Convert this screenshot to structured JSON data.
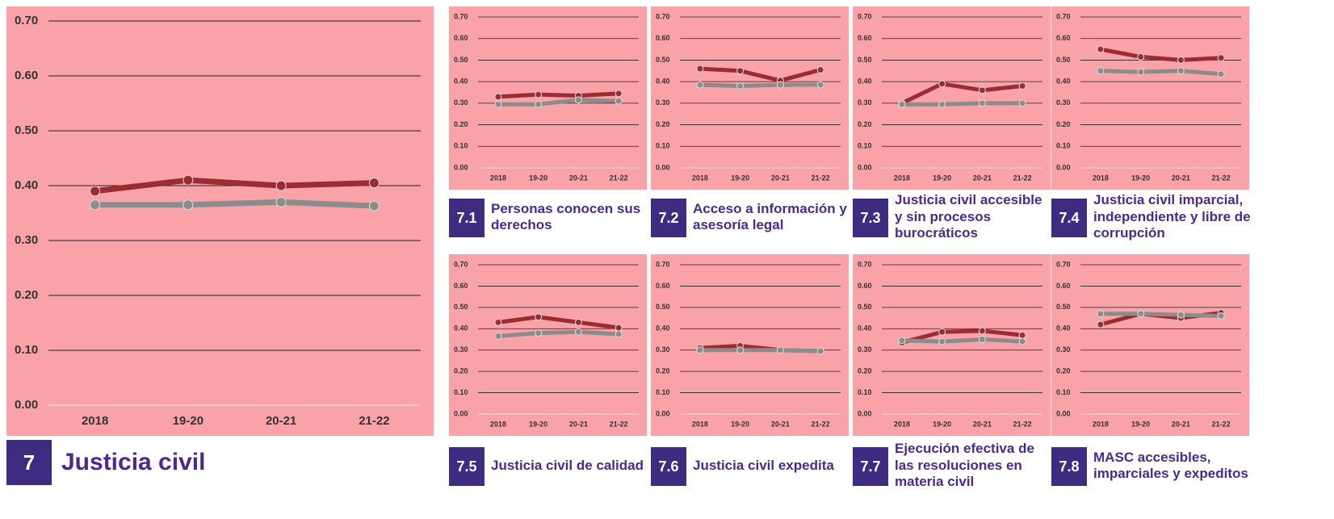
{
  "chart_data": [
    {
      "type": "line",
      "badge": "7",
      "title": "Justicia civil",
      "categories": [
        "2018",
        "19-20",
        "20-21",
        "21-22"
      ],
      "series": [
        {
          "color": "#9b2c31",
          "values": [
            0.39,
            0.41,
            0.4,
            0.405
          ]
        },
        {
          "color": "#8c8c8c",
          "values": [
            0.365,
            0.365,
            0.37,
            0.363
          ]
        }
      ],
      "ylim": [
        0,
        0.7
      ],
      "yticks": [
        {
          "value": 0,
          "label": "0.00"
        },
        {
          "value": 0.1,
          "label": "0.10"
        },
        {
          "value": 0.2,
          "label": "0.20"
        },
        {
          "value": 0.3,
          "label": "0.30"
        },
        {
          "value": 0.4,
          "label": "0.40"
        },
        {
          "value": 0.5,
          "label": "0.50"
        },
        {
          "value": 0.6,
          "label": "0.60"
        },
        {
          "value": 0.7,
          "label": "0.70"
        }
      ],
      "grid": true
    },
    {
      "type": "line",
      "badge": "7.1",
      "title": "Personas conocen sus derechos",
      "categories": [
        "2018",
        "19-20",
        "20-21",
        "21-22"
      ],
      "series": [
        {
          "color": "#9b2c31",
          "values": [
            0.33,
            0.34,
            0.335,
            0.345
          ]
        },
        {
          "color": "#8c8c8c",
          "values": [
            0.295,
            0.295,
            0.315,
            0.31
          ]
        }
      ],
      "ylim": [
        0,
        0.7
      ],
      "yticks": [
        {
          "value": 0,
          "label": "0.00"
        },
        {
          "value": 0.1,
          "label": "0.10"
        },
        {
          "value": 0.2,
          "label": "0.20"
        },
        {
          "value": 0.3,
          "label": "0.30"
        },
        {
          "value": 0.4,
          "label": "0.40"
        },
        {
          "value": 0.5,
          "label": "0.50"
        },
        {
          "value": 0.6,
          "label": "0.60"
        },
        {
          "value": 0.7,
          "label": "0.70"
        }
      ],
      "grid": true
    },
    {
      "type": "line",
      "badge": "7.2",
      "title": "Acceso a información y asesoría legal",
      "categories": [
        "2018",
        "19-20",
        "20-21",
        "21-22"
      ],
      "series": [
        {
          "color": "#9b2c31",
          "values": [
            0.46,
            0.45,
            0.405,
            0.455
          ]
        },
        {
          "color": "#8c8c8c",
          "values": [
            0.385,
            0.38,
            0.385,
            0.385
          ]
        }
      ],
      "ylim": [
        0,
        0.7
      ],
      "yticks": [
        {
          "value": 0,
          "label": "0.00"
        },
        {
          "value": 0.1,
          "label": "0.10"
        },
        {
          "value": 0.2,
          "label": "0.20"
        },
        {
          "value": 0.3,
          "label": "0.30"
        },
        {
          "value": 0.4,
          "label": "0.40"
        },
        {
          "value": 0.5,
          "label": "0.50"
        },
        {
          "value": 0.6,
          "label": "0.60"
        },
        {
          "value": 0.7,
          "label": "0.70"
        }
      ],
      "grid": true
    },
    {
      "type": "line",
      "badge": "7.3",
      "title": "Justicia civil accesible y sin procesos burocráticos",
      "categories": [
        "2018",
        "19-20",
        "20-21",
        "21-22"
      ],
      "series": [
        {
          "color": "#9b2c31",
          "values": [
            0.3,
            0.39,
            0.36,
            0.38
          ]
        },
        {
          "color": "#8c8c8c",
          "values": [
            0.295,
            0.295,
            0.3,
            0.3
          ]
        }
      ],
      "ylim": [
        0,
        0.7
      ],
      "yticks": [
        {
          "value": 0,
          "label": "0.00"
        },
        {
          "value": 0.1,
          "label": "0.10"
        },
        {
          "value": 0.2,
          "label": "0.20"
        },
        {
          "value": 0.3,
          "label": "0.30"
        },
        {
          "value": 0.4,
          "label": "0.40"
        },
        {
          "value": 0.5,
          "label": "0.50"
        },
        {
          "value": 0.6,
          "label": "0.60"
        },
        {
          "value": 0.7,
          "label": "0.70"
        }
      ],
      "grid": true
    },
    {
      "type": "line",
      "badge": "7.4",
      "title": "Justicia civil imparcial, independiente y libre de corrupción",
      "categories": [
        "2018",
        "19-20",
        "20-21",
        "21-22"
      ],
      "series": [
        {
          "color": "#9b2c31",
          "values": [
            0.55,
            0.515,
            0.5,
            0.51
          ]
        },
        {
          "color": "#8c8c8c",
          "values": [
            0.45,
            0.445,
            0.45,
            0.435
          ]
        }
      ],
      "ylim": [
        0,
        0.7
      ],
      "yticks": [
        {
          "value": 0,
          "label": "0.00"
        },
        {
          "value": 0.1,
          "label": "0.10"
        },
        {
          "value": 0.2,
          "label": "0.20"
        },
        {
          "value": 0.3,
          "label": "0.30"
        },
        {
          "value": 0.4,
          "label": "0.40"
        },
        {
          "value": 0.5,
          "label": "0.50"
        },
        {
          "value": 0.6,
          "label": "0.60"
        },
        {
          "value": 0.7,
          "label": "0.70"
        }
      ],
      "grid": true
    },
    {
      "type": "line",
      "badge": "7.5",
      "title": "Justicia civil de calidad",
      "categories": [
        "2018",
        "19-20",
        "20-21",
        "21-22"
      ],
      "series": [
        {
          "color": "#9b2c31",
          "values": [
            0.43,
            0.455,
            0.43,
            0.405
          ]
        },
        {
          "color": "#8c8c8c",
          "values": [
            0.365,
            0.38,
            0.385,
            0.375
          ]
        }
      ],
      "ylim": [
        0,
        0.7
      ],
      "yticks": [
        {
          "value": 0,
          "label": "0.00"
        },
        {
          "value": 0.1,
          "label": "0.10"
        },
        {
          "value": 0.2,
          "label": "0.20"
        },
        {
          "value": 0.3,
          "label": "0.30"
        },
        {
          "value": 0.4,
          "label": "0.40"
        },
        {
          "value": 0.5,
          "label": "0.50"
        },
        {
          "value": 0.6,
          "label": "0.60"
        },
        {
          "value": 0.7,
          "label": "0.70"
        }
      ],
      "grid": true
    },
    {
      "type": "line",
      "badge": "7.6",
      "title": "Justicia civil expedita",
      "categories": [
        "2018",
        "19-20",
        "20-21",
        "21-22"
      ],
      "series": [
        {
          "color": "#9b2c31",
          "values": [
            0.31,
            0.32,
            0.3,
            0.295
          ]
        },
        {
          "color": "#8c8c8c",
          "values": [
            0.3,
            0.3,
            0.3,
            0.295
          ]
        }
      ],
      "ylim": [
        0,
        0.7
      ],
      "yticks": [
        {
          "value": 0,
          "label": "0.00"
        },
        {
          "value": 0.1,
          "label": "0.10"
        },
        {
          "value": 0.2,
          "label": "0.20"
        },
        {
          "value": 0.3,
          "label": "0.30"
        },
        {
          "value": 0.4,
          "label": "0.40"
        },
        {
          "value": 0.5,
          "label": "0.50"
        },
        {
          "value": 0.6,
          "label": "0.60"
        },
        {
          "value": 0.7,
          "label": "0.70"
        }
      ],
      "grid": true
    },
    {
      "type": "line",
      "badge": "7.7",
      "title": "Ejecución efectiva de las resoluciones en materia civil",
      "categories": [
        "2018",
        "19-20",
        "20-21",
        "21-22"
      ],
      "series": [
        {
          "color": "#9b2c31",
          "values": [
            0.335,
            0.385,
            0.39,
            0.37
          ]
        },
        {
          "color": "#8c8c8c",
          "values": [
            0.345,
            0.34,
            0.35,
            0.34
          ]
        }
      ],
      "ylim": [
        0,
        0.7
      ],
      "yticks": [
        {
          "value": 0,
          "label": "0.00"
        },
        {
          "value": 0.1,
          "label": "0.10"
        },
        {
          "value": 0.2,
          "label": "0.20"
        },
        {
          "value": 0.3,
          "label": "0.30"
        },
        {
          "value": 0.4,
          "label": "0.40"
        },
        {
          "value": 0.5,
          "label": "0.50"
        },
        {
          "value": 0.6,
          "label": "0.60"
        },
        {
          "value": 0.7,
          "label": "0.70"
        }
      ],
      "grid": true
    },
    {
      "type": "line",
      "badge": "7.8",
      "title": "MASC accesibles, imparciales y expeditos",
      "categories": [
        "2018",
        "19-20",
        "20-21",
        "21-22"
      ],
      "series": [
        {
          "color": "#9b2c31",
          "values": [
            0.42,
            0.47,
            0.45,
            0.475
          ]
        },
        {
          "color": "#8c8c8c",
          "values": [
            0.47,
            0.47,
            0.465,
            0.46
          ]
        }
      ],
      "ylim": [
        0,
        0.7
      ],
      "yticks": [
        {
          "value": 0,
          "label": "0.00"
        },
        {
          "value": 0.1,
          "label": "0.10"
        },
        {
          "value": 0.2,
          "label": "0.20"
        },
        {
          "value": 0.3,
          "label": "0.30"
        },
        {
          "value": 0.4,
          "label": "0.40"
        },
        {
          "value": 0.5,
          "label": "0.50"
        },
        {
          "value": 0.6,
          "label": "0.60"
        },
        {
          "value": 0.7,
          "label": "0.70"
        }
      ],
      "grid": true
    }
  ]
}
